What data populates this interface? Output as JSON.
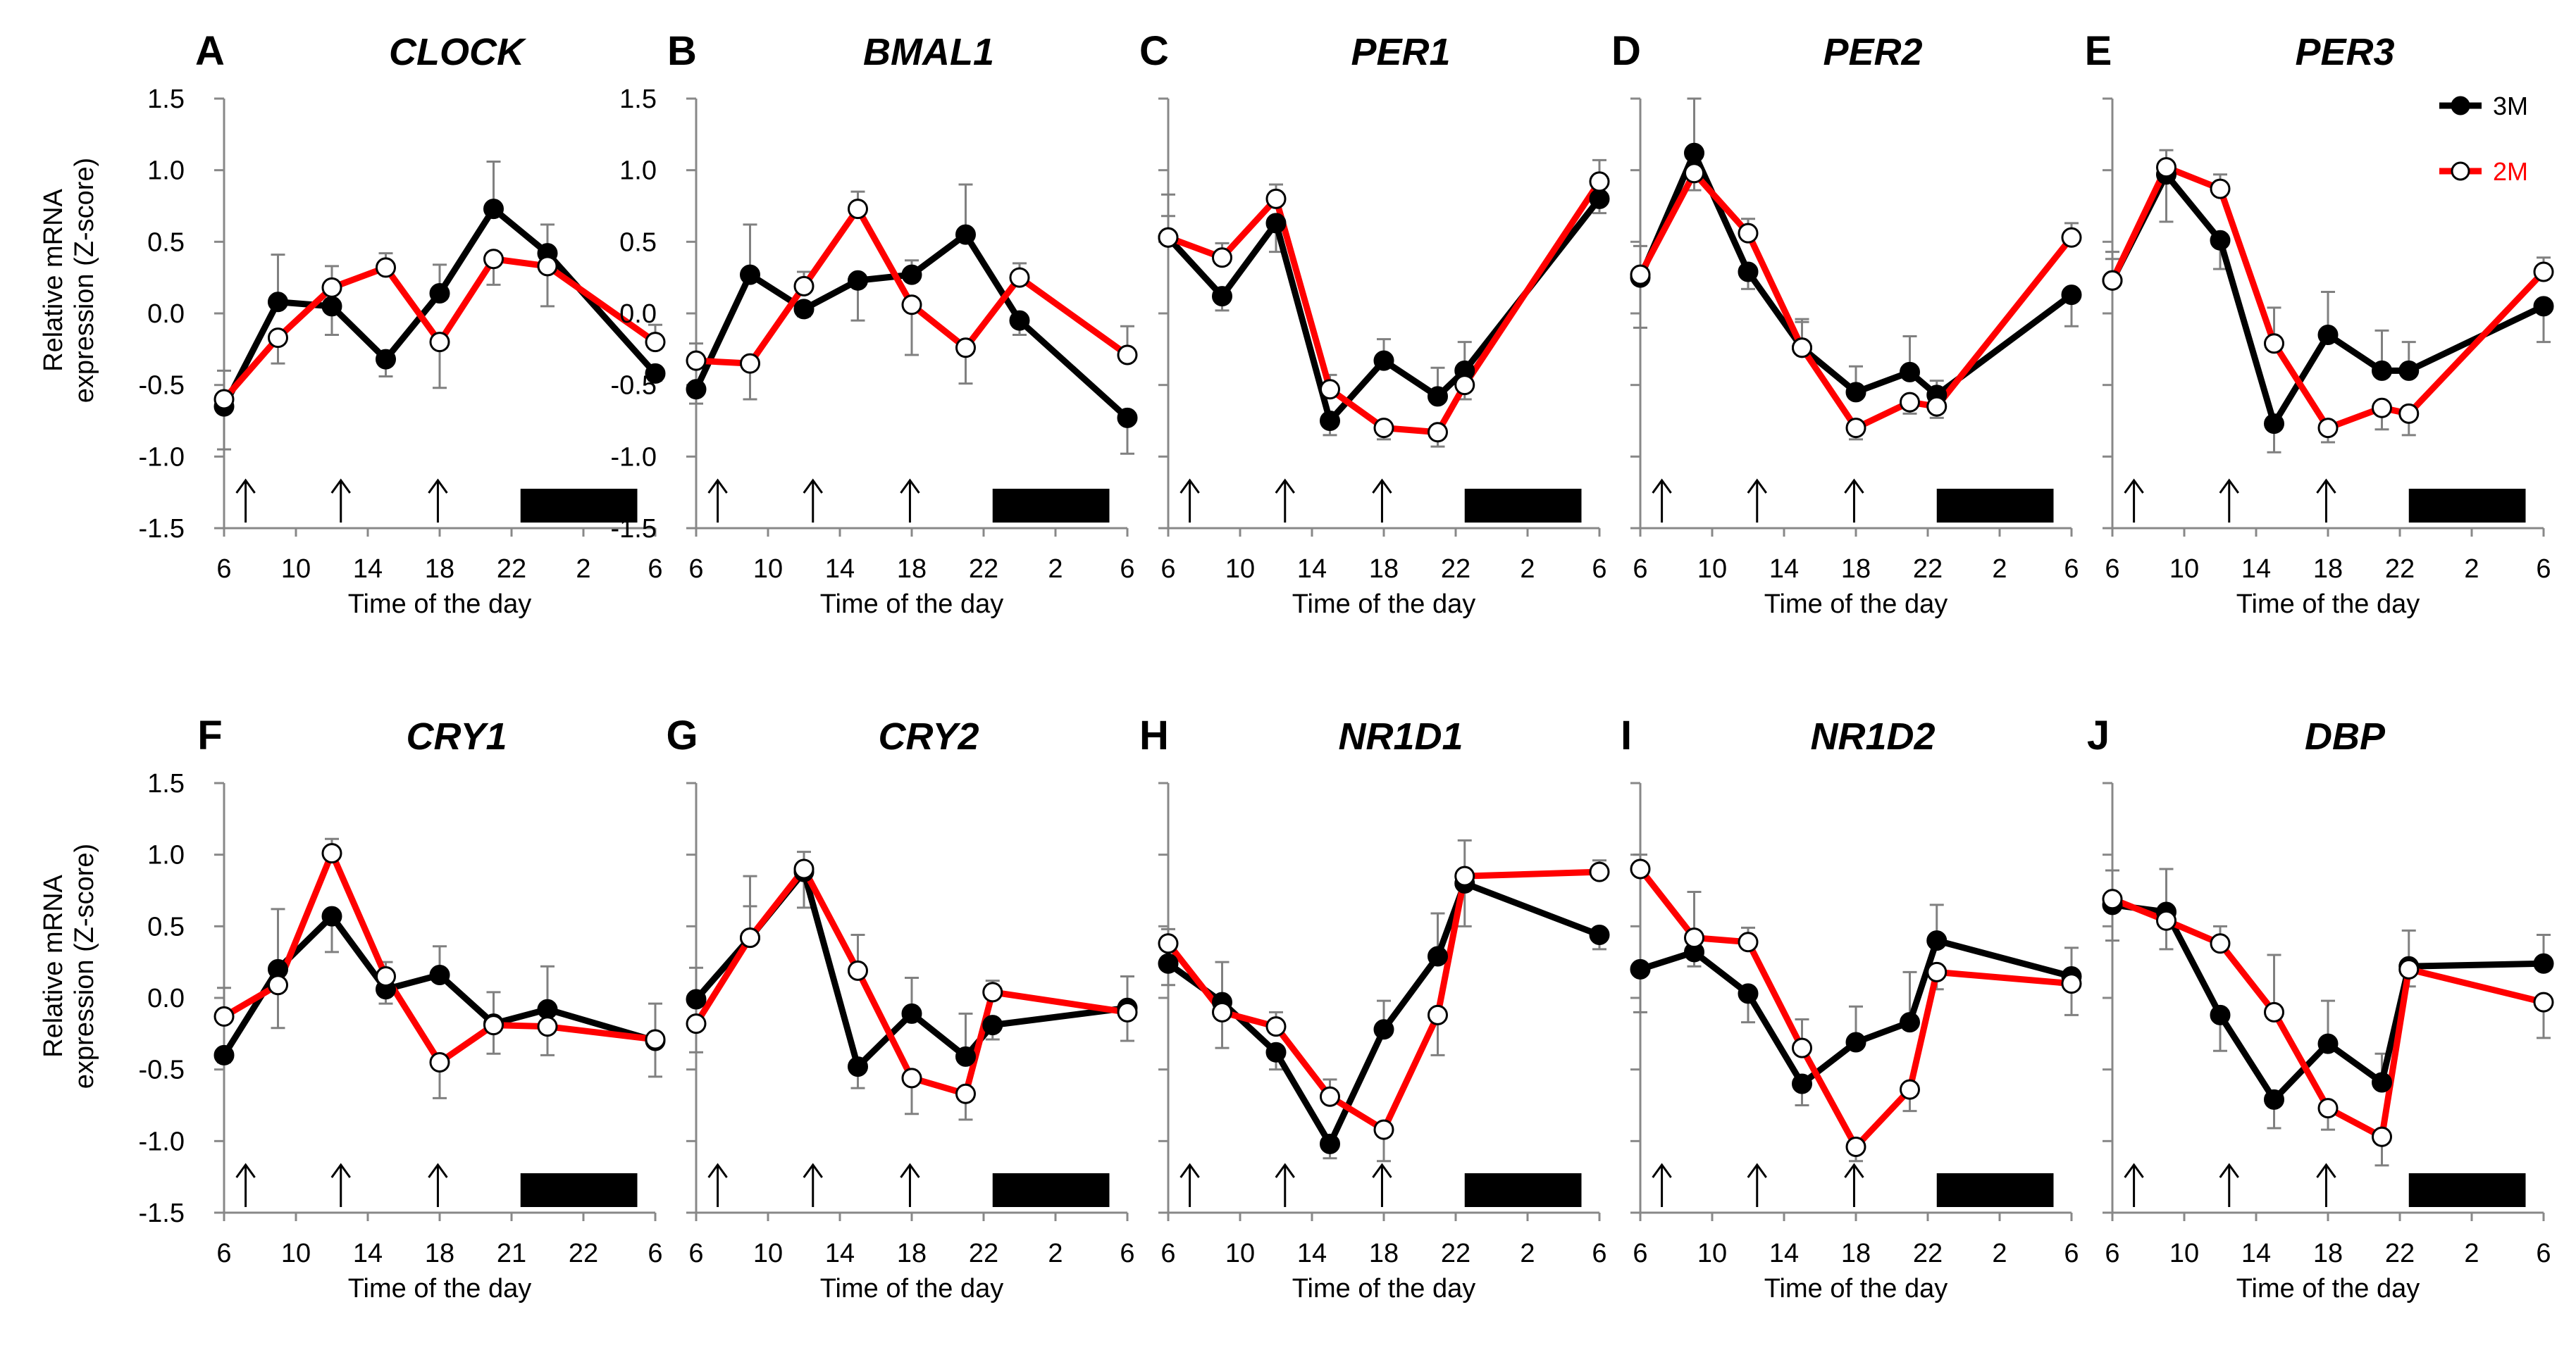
{
  "figure": {
    "ylabel_line1": "Relative mRNA",
    "ylabel_line2": "expression (Z-score)",
    "xlabel": "Time of the day",
    "legend": [
      {
        "name": "3M",
        "color": "#000000",
        "marker": "filled"
      },
      {
        "name": "2M",
        "color": "#ff0000",
        "marker": "open"
      }
    ],
    "colors": {
      "series_3M": "#000000",
      "series_2M": "#ff0000",
      "error_bar": "#808080",
      "dark_bar": "#000000"
    }
  },
  "chart_data": [
    {
      "type": "line",
      "letter": "A",
      "title": "CLOCK",
      "xlabel": "Time of the day",
      "ylim": [
        -1.5,
        1.5
      ],
      "yticks": [
        "1.5",
        "1.0",
        "0.5",
        "0.0",
        "-0.5",
        "-1.0",
        "-1.5"
      ],
      "xticks": [
        "6",
        "10",
        "14",
        "18",
        "22",
        "2",
        "6"
      ],
      "x_range": [
        6,
        30
      ],
      "arrows_at": [
        7.2,
        12.5,
        17.9
      ],
      "dark_bar": [
        22.5,
        29
      ],
      "series": [
        {
          "name": "3M",
          "x": [
            6,
            9,
            12,
            15,
            18,
            21,
            24,
            30
          ],
          "values": [
            -0.65,
            0.08,
            0.05,
            -0.32,
            0.14,
            0.73,
            0.42,
            -0.42
          ],
          "err": [
            0.3,
            0.33,
            0.2,
            0.12,
            0.2,
            0.33,
            0.2,
            0.05
          ]
        },
        {
          "name": "2M",
          "x": [
            6,
            9,
            12,
            15,
            18,
            21,
            24,
            30
          ],
          "values": [
            -0.6,
            -0.17,
            0.18,
            0.32,
            -0.2,
            0.38,
            0.33,
            -0.2
          ],
          "err": [
            0.2,
            0.18,
            0.15,
            0.1,
            0.32,
            0.18,
            0.28,
            0.12
          ]
        }
      ]
    },
    {
      "type": "line",
      "letter": "B",
      "title": "BMAL1",
      "xlabel": "Time of the day",
      "ylim": [
        -1.5,
        1.5
      ],
      "yticks": [
        "1.5",
        "1.0",
        "0.5",
        "0.0",
        "-0.5",
        "-1.0",
        "-1.5"
      ],
      "xticks": [
        "6",
        "10",
        "14",
        "18",
        "22",
        "2",
        "6"
      ],
      "x_range": [
        6,
        30
      ],
      "arrows_at": [
        7.2,
        12.5,
        17.9
      ],
      "dark_bar": [
        22.5,
        29
      ],
      "series": [
        {
          "name": "3M",
          "x": [
            6,
            9,
            12,
            15,
            18,
            21,
            24,
            30
          ],
          "values": [
            -0.53,
            0.27,
            0.03,
            0.23,
            0.27,
            0.55,
            -0.05,
            -0.73
          ],
          "err": [
            0.1,
            0.35,
            0.05,
            0.28,
            0.1,
            0.35,
            0.1,
            0.25
          ]
        },
        {
          "name": "2M",
          "x": [
            6,
            9,
            12,
            15,
            18,
            21,
            24,
            30
          ],
          "values": [
            -0.33,
            -0.35,
            0.19,
            0.73,
            0.06,
            -0.24,
            0.25,
            -0.29
          ],
          "err": [
            0.12,
            0.25,
            0.1,
            0.12,
            0.35,
            0.25,
            0.1,
            0.2
          ]
        }
      ]
    },
    {
      "type": "line",
      "letter": "C",
      "title": "PER1",
      "xlabel": "Time of the day",
      "ylim": [
        -1.5,
        1.5
      ],
      "yticks": [],
      "xticks": [
        "6",
        "10",
        "14",
        "18",
        "22",
        "2",
        "6"
      ],
      "x_range": [
        6,
        30
      ],
      "arrows_at": [
        7.2,
        12.5,
        17.9
      ],
      "dark_bar": [
        22.5,
        29
      ],
      "series": [
        {
          "name": "3M",
          "x": [
            6,
            9,
            12,
            15,
            18,
            21,
            22.5,
            30
          ],
          "values": [
            0.53,
            0.12,
            0.63,
            -0.75,
            -0.33,
            -0.58,
            -0.4,
            0.8
          ],
          "err": [
            0.3,
            0.1,
            0.2,
            0.1,
            0.15,
            0.2,
            0.2,
            0.1
          ]
        },
        {
          "name": "2M",
          "x": [
            6,
            9,
            12,
            15,
            18,
            21,
            22.5,
            30
          ],
          "values": [
            0.53,
            0.39,
            0.8,
            -0.53,
            -0.8,
            -0.83,
            -0.5,
            0.92
          ],
          "err": [
            0.15,
            0.1,
            0.1,
            0.1,
            0.08,
            0.1,
            0.1,
            0.15
          ]
        }
      ]
    },
    {
      "type": "line",
      "letter": "D",
      "title": "PER2",
      "xlabel": "Time of the day",
      "ylim": [
        -1.5,
        1.5
      ],
      "yticks": [],
      "xticks": [
        "6",
        "10",
        "14",
        "18",
        "22",
        "2",
        "6"
      ],
      "x_range": [
        6,
        30
      ],
      "arrows_at": [
        7.2,
        12.5,
        17.9
      ],
      "dark_bar": [
        22.5,
        29
      ],
      "series": [
        {
          "name": "3M",
          "x": [
            6,
            9,
            12,
            15,
            18,
            21,
            22.5,
            30
          ],
          "values": [
            0.25,
            1.12,
            0.29,
            -0.24,
            -0.55,
            -0.41,
            -0.57,
            0.13
          ],
          "err": [
            0.35,
            0.38,
            0.12,
            0.2,
            0.18,
            0.25,
            0.1,
            0.22
          ]
        },
        {
          "name": "2M",
          "x": [
            6,
            9,
            12,
            15,
            18,
            21,
            22.5,
            30
          ],
          "values": [
            0.27,
            0.98,
            0.56,
            -0.24,
            -0.8,
            -0.62,
            -0.65,
            0.53
          ],
          "err": [
            0.2,
            0.12,
            0.1,
            0.18,
            0.08,
            0.08,
            0.08,
            0.1
          ]
        }
      ]
    },
    {
      "type": "line",
      "letter": "E",
      "title": "PER3",
      "xlabel": "Time of the day",
      "ylim": [
        -1.5,
        1.5
      ],
      "yticks": [],
      "xticks": [
        "6",
        "10",
        "14",
        "18",
        "22",
        "2",
        "6"
      ],
      "x_range": [
        6,
        30
      ],
      "arrows_at": [
        7.2,
        12.5,
        17.9
      ],
      "dark_bar": [
        22.5,
        29
      ],
      "series": [
        {
          "name": "3M",
          "x": [
            6,
            9,
            12,
            15,
            18,
            21,
            22.5,
            30
          ],
          "values": [
            0.23,
            0.97,
            0.51,
            -0.77,
            -0.15,
            -0.4,
            -0.4,
            0.05
          ],
          "err": [
            0.2,
            0.33,
            0.2,
            0.2,
            0.3,
            0.28,
            0.2,
            0.25
          ]
        },
        {
          "name": "2M",
          "x": [
            6,
            9,
            12,
            15,
            18,
            21,
            22.5,
            30
          ],
          "values": [
            0.23,
            1.02,
            0.87,
            -0.21,
            -0.8,
            -0.66,
            -0.7,
            0.29
          ],
          "err": [
            0.15,
            0.12,
            0.1,
            0.25,
            0.1,
            0.15,
            0.15,
            0.1
          ]
        }
      ]
    },
    {
      "type": "line",
      "letter": "F",
      "title": "CRY1",
      "xlabel": "Time of the day",
      "ylim": [
        -1.5,
        1.5
      ],
      "yticks": [
        "1.5",
        "1.0",
        "0.5",
        "0.0",
        "-0.5",
        "-1.0",
        "-1.5"
      ],
      "xticks": [
        "6",
        "10",
        "14",
        "18",
        "21",
        "22",
        "6"
      ],
      "x_range": [
        6,
        30
      ],
      "arrows_at": [
        7.2,
        12.5,
        17.9
      ],
      "dark_bar": [
        22.5,
        29
      ],
      "series": [
        {
          "name": "3M",
          "x": [
            6,
            9,
            12,
            15,
            18,
            21,
            24,
            30
          ],
          "values": [
            -0.4,
            0.2,
            0.57,
            0.06,
            0.16,
            -0.18,
            -0.08,
            -0.3
          ],
          "err": [
            0.05,
            0.42,
            0.25,
            0.1,
            0.2,
            0.22,
            0.3,
            0.25
          ]
        },
        {
          "name": "2M",
          "x": [
            6,
            9,
            12,
            15,
            18,
            21,
            24,
            30
          ],
          "values": [
            -0.13,
            0.09,
            1.01,
            0.15,
            -0.45,
            -0.19,
            -0.2,
            -0.29
          ],
          "err": [
            0.2,
            0.3,
            0.1,
            0.1,
            0.25,
            0.2,
            0.2,
            0.25
          ]
        }
      ]
    },
    {
      "type": "line",
      "letter": "G",
      "title": "CRY2",
      "xlabel": "Time of the day",
      "ylim": [
        -1.5,
        1.5
      ],
      "yticks": [],
      "xticks": [
        "6",
        "10",
        "14",
        "18",
        "22",
        "2",
        "6"
      ],
      "x_range": [
        6,
        30
      ],
      "arrows_at": [
        7.2,
        12.5,
        17.9
      ],
      "dark_bar": [
        22.5,
        29
      ],
      "series": [
        {
          "name": "3M",
          "x": [
            6,
            9,
            12,
            15,
            18,
            21,
            22.5,
            30
          ],
          "values": [
            -0.01,
            0.42,
            0.88,
            -0.48,
            -0.11,
            -0.41,
            -0.19,
            -0.07
          ],
          "err": [
            0.22,
            0.43,
            0.25,
            0.15,
            0.25,
            0.3,
            0.1,
            0.22
          ]
        },
        {
          "name": "2M",
          "x": [
            6,
            9,
            12,
            15,
            18,
            21,
            22.5,
            30
          ],
          "values": [
            -0.18,
            0.42,
            0.9,
            0.19,
            -0.56,
            -0.67,
            0.04,
            -0.1
          ],
          "err": [
            0.2,
            0.22,
            0.12,
            0.25,
            0.25,
            0.18,
            0.08,
            0.2
          ]
        }
      ]
    },
    {
      "type": "line",
      "letter": "H",
      "title": "NR1D1",
      "xlabel": "Time of the day",
      "ylim": [
        -1.5,
        1.5
      ],
      "yticks": [],
      "xticks": [
        "6",
        "10",
        "14",
        "18",
        "22",
        "2",
        "6"
      ],
      "x_range": [
        6,
        30
      ],
      "arrows_at": [
        7.2,
        12.5,
        17.9
      ],
      "dark_bar": [
        22.5,
        29
      ],
      "series": [
        {
          "name": "3M",
          "x": [
            6,
            9,
            12,
            15,
            18,
            21,
            22.5,
            30
          ],
          "values": [
            0.24,
            -0.03,
            -0.38,
            -1.02,
            -0.22,
            0.29,
            0.8,
            0.44
          ],
          "err": [
            0.15,
            0.28,
            0.12,
            0.1,
            0.2,
            0.3,
            0.3,
            0.1
          ]
        },
        {
          "name": "2M",
          "x": [
            6,
            9,
            12,
            15,
            18,
            21,
            22.5,
            30
          ],
          "values": [
            0.38,
            -0.1,
            -0.2,
            -0.69,
            -0.92,
            -0.12,
            0.85,
            0.88
          ],
          "err": [
            0.1,
            0.25,
            0.1,
            0.12,
            0.22,
            0.28,
            0.25,
            0.08
          ]
        }
      ]
    },
    {
      "type": "line",
      "letter": "I",
      "title": "NR1D2",
      "xlabel": "Time of the day",
      "ylim": [
        -1.5,
        1.5
      ],
      "yticks": [],
      "xticks": [
        "6",
        "10",
        "14",
        "18",
        "22",
        "2",
        "6"
      ],
      "x_range": [
        6,
        30
      ],
      "arrows_at": [
        7.2,
        12.5,
        17.9
      ],
      "dark_bar": [
        22.5,
        29
      ],
      "series": [
        {
          "name": "3M",
          "x": [
            6,
            9,
            12,
            15,
            18,
            21,
            22.5,
            30
          ],
          "values": [
            0.2,
            0.32,
            0.03,
            -0.6,
            -0.31,
            -0.17,
            0.4,
            0.15
          ],
          "err": [
            0.3,
            0.1,
            0.2,
            0.15,
            0.25,
            0.35,
            0.25,
            0.2
          ]
        },
        {
          "name": "2M",
          "x": [
            6,
            9,
            12,
            15,
            18,
            21,
            22.5,
            30
          ],
          "values": [
            0.9,
            0.42,
            0.39,
            -0.35,
            -1.04,
            -0.64,
            0.18,
            0.1
          ],
          "err": [
            0.1,
            0.32,
            0.1,
            0.2,
            0.1,
            0.15,
            0.12,
            0.22
          ]
        }
      ]
    },
    {
      "type": "line",
      "letter": "J",
      "title": "DBP",
      "xlabel": "Time of the day",
      "ylim": [
        -1.5,
        1.5
      ],
      "yticks": [],
      "xticks": [
        "6",
        "10",
        "14",
        "18",
        "22",
        "2",
        "6"
      ],
      "x_range": [
        6,
        30
      ],
      "arrows_at": [
        7.2,
        12.5,
        17.9
      ],
      "dark_bar": [
        22.5,
        29
      ],
      "series": [
        {
          "name": "3M",
          "x": [
            6,
            9,
            12,
            15,
            18,
            21,
            22.5,
            30
          ],
          "values": [
            0.65,
            0.6,
            -0.12,
            -0.71,
            -0.32,
            -0.59,
            0.22,
            0.24
          ],
          "err": [
            0.25,
            0.3,
            0.25,
            0.2,
            0.3,
            0.2,
            0.25,
            0.2
          ]
        },
        {
          "name": "2M",
          "x": [
            6,
            9,
            12,
            15,
            18,
            21,
            22.5,
            30
          ],
          "values": [
            0.69,
            0.54,
            0.38,
            -0.1,
            -0.77,
            -0.97,
            0.2,
            -0.03
          ],
          "err": [
            0.2,
            0.2,
            0.12,
            0.4,
            0.15,
            0.2,
            0.12,
            0.25
          ]
        }
      ]
    }
  ]
}
